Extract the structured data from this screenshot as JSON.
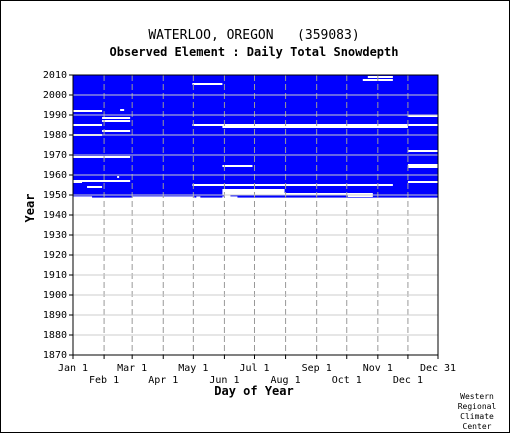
{
  "chart_data": {
    "type": "heatmap",
    "title": "WATERLOO, OREGON   (359083)",
    "subtitle": "Observed Element : Daily Total Snowdepth",
    "xlabel": "Day of Year",
    "ylabel": "Year",
    "ylim": [
      1870,
      2010
    ],
    "y_ticks": [
      1870,
      1880,
      1890,
      1900,
      1910,
      1920,
      1930,
      1940,
      1950,
      1960,
      1970,
      1980,
      1990,
      2000,
      2010
    ],
    "x_ticks_top": [
      {
        "label": "Jan 1",
        "day": 1
      },
      {
        "label": "Mar 1",
        "day": 60
      },
      {
        "label": "May 1",
        "day": 121
      },
      {
        "label": "Jul 1",
        "day": 182
      },
      {
        "label": "Sep 1",
        "day": 244
      },
      {
        "label": "Nov 1",
        "day": 305
      },
      {
        "label": "Dec 31",
        "day": 365
      }
    ],
    "x_ticks_bottom": [
      {
        "label": "Feb 1",
        "day": 32
      },
      {
        "label": "Apr 1",
        "day": 91
      },
      {
        "label": "Jun 1",
        "day": 152
      },
      {
        "label": "Aug 1",
        "day": 213
      },
      {
        "label": "Oct 1",
        "day": 274
      },
      {
        "label": "Dec 1",
        "day": 335
      }
    ],
    "data_color": "#0000ff",
    "missing_color": "#ffffff",
    "record_years": [
      1948,
      2010
    ],
    "missing_segments": [
      {
        "year": 1948.2,
        "start": 1,
        "end": 365
      },
      {
        "year": 1948.8,
        "start": 1,
        "end": 20
      },
      {
        "year": 1948.8,
        "start": 60,
        "end": 122
      },
      {
        "year": 1948.8,
        "start": 124,
        "end": 128
      },
      {
        "year": 1948.8,
        "start": 150,
        "end": 165
      },
      {
        "year": 1949.5,
        "start": 152,
        "end": 158
      },
      {
        "year": 1949.5,
        "start": 275,
        "end": 300
      },
      {
        "year": 1950.5,
        "start": 150,
        "end": 300
      },
      {
        "year": 1951.5,
        "start": 150,
        "end": 212
      },
      {
        "year": 1952.5,
        "start": 150,
        "end": 212
      },
      {
        "year": 1954,
        "start": 15,
        "end": 30
      },
      {
        "year": 1955,
        "start": 120,
        "end": 320
      },
      {
        "year": 1956.5,
        "start": 1,
        "end": 10
      },
      {
        "year": 1956.5,
        "start": 335,
        "end": 365
      },
      {
        "year": 1957,
        "start": 1,
        "end": 58
      },
      {
        "year": 1959,
        "start": 45,
        "end": 47
      },
      {
        "year": 1964,
        "start": 335,
        "end": 365
      },
      {
        "year": 1964.5,
        "start": 150,
        "end": 180
      },
      {
        "year": 1965,
        "start": 335,
        "end": 365
      },
      {
        "year": 1969,
        "start": 1,
        "end": 58
      },
      {
        "year": 1972,
        "start": 335,
        "end": 365
      },
      {
        "year": 1980,
        "start": 1,
        "end": 30
      },
      {
        "year": 1982,
        "start": 30,
        "end": 58
      },
      {
        "year": 1984,
        "start": 150,
        "end": 335
      },
      {
        "year": 1985,
        "start": 120,
        "end": 335
      },
      {
        "year": 1985,
        "start": 1,
        "end": 30
      },
      {
        "year": 1985,
        "start": 335,
        "end": 365
      },
      {
        "year": 1987,
        "start": 30,
        "end": 58
      },
      {
        "year": 1988.5,
        "start": 30,
        "end": 58
      },
      {
        "year": 1989.5,
        "start": 335,
        "end": 365
      },
      {
        "year": 1992,
        "start": 1,
        "end": 30
      },
      {
        "year": 1992.5,
        "start": 48,
        "end": 52
      },
      {
        "year": 2005.5,
        "start": 120,
        "end": 150
      },
      {
        "year": 2007.5,
        "start": 290,
        "end": 320
      },
      {
        "year": 2009,
        "start": 295,
        "end": 320
      }
    ],
    "grid": true,
    "grid_x_days": [
      32,
      60,
      91,
      121,
      152,
      182,
      213,
      244,
      274,
      305,
      335
    ]
  },
  "credit": [
    "Western",
    "Regional",
    "Climate",
    "Center"
  ]
}
